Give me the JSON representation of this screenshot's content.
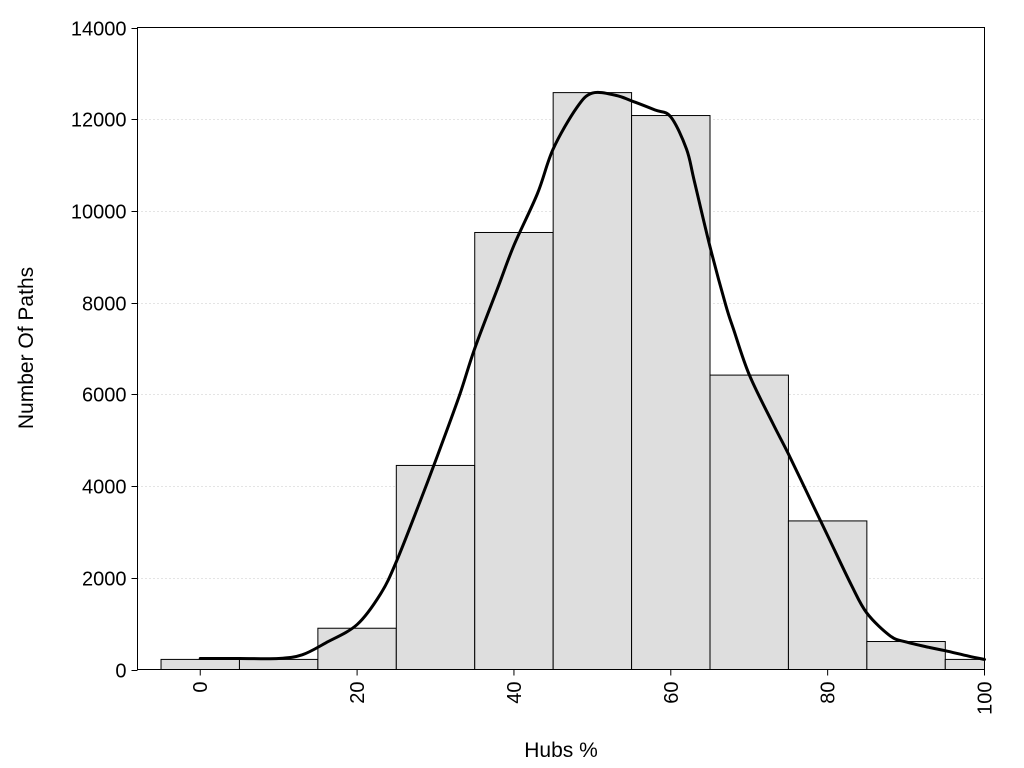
{
  "chart_data": {
    "type": "bar",
    "xlabel": "Hubs %",
    "ylabel": "Number Of Paths",
    "xlim": [
      -8,
      100
    ],
    "ylim": [
      0,
      14000
    ],
    "x_ticks": [
      0,
      20,
      40,
      60,
      80,
      100
    ],
    "y_ticks": [
      0,
      2000,
      4000,
      6000,
      8000,
      10000,
      12000,
      14000
    ],
    "grid": "horizontal",
    "bin_width": 10,
    "bins": [
      {
        "x_start": -5,
        "x_end": 5,
        "value": 220
      },
      {
        "x_start": 5,
        "x_end": 15,
        "value": 220
      },
      {
        "x_start": 15,
        "x_end": 25,
        "value": 900
      },
      {
        "x_start": 25,
        "x_end": 35,
        "value": 4450
      },
      {
        "x_start": 35,
        "x_end": 45,
        "value": 9530
      },
      {
        "x_start": 45,
        "x_end": 55,
        "value": 12580
      },
      {
        "x_start": 55,
        "x_end": 65,
        "value": 12080
      },
      {
        "x_start": 65,
        "x_end": 75,
        "value": 6420
      },
      {
        "x_start": 75,
        "x_end": 85,
        "value": 3240
      },
      {
        "x_start": 85,
        "x_end": 95,
        "value": 610
      },
      {
        "x_start": 95,
        "x_end": 100,
        "value": 220
      }
    ],
    "density_curve": {
      "x": [
        0,
        5,
        10,
        13,
        16,
        20,
        23,
        25,
        28,
        30,
        33,
        35,
        38,
        40,
        43,
        45,
        48,
        50,
        53,
        55,
        58,
        60,
        62,
        63,
        65,
        67,
        68,
        70,
        73,
        75,
        78,
        80,
        83,
        85,
        88,
        90,
        93,
        95,
        98,
        100
      ],
      "y": [
        240,
        240,
        240,
        320,
        580,
        980,
        1650,
        2350,
        3650,
        4550,
        5950,
        7000,
        8350,
        9250,
        10380,
        11350,
        12250,
        12570,
        12520,
        12400,
        12200,
        12050,
        11350,
        10650,
        9220,
        7950,
        7420,
        6430,
        5370,
        4700,
        3630,
        2920,
        1850,
        1230,
        730,
        600,
        480,
        410,
        290,
        220
      ]
    }
  }
}
